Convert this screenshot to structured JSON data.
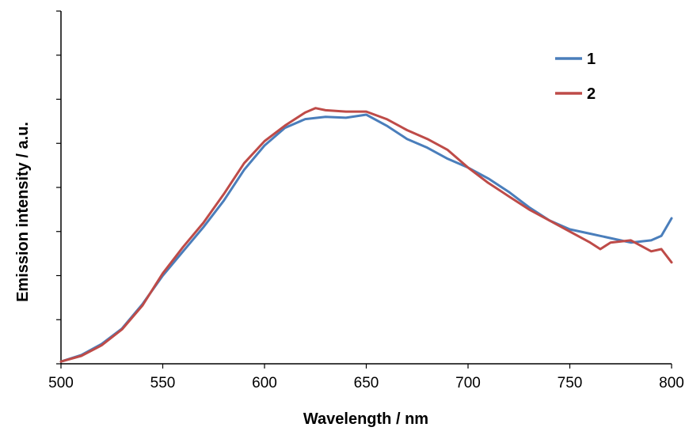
{
  "chart_data": {
    "type": "line",
    "title": "",
    "xlabel": "Wavelength / nm",
    "ylabel": "Emission intensity / a.u.",
    "xlim": [
      500,
      800
    ],
    "ylim": [
      0,
      8
    ],
    "x_ticks": [
      "500",
      "550",
      "600",
      "650",
      "700",
      "750",
      "800"
    ],
    "y_tick_labels_shown": false,
    "grid": false,
    "legend_position": "top-right",
    "series": [
      {
        "name": "1",
        "color": "#4A7EBB",
        "points": [
          [
            500,
            0.05
          ],
          [
            510,
            0.2
          ],
          [
            520,
            0.45
          ],
          [
            530,
            0.8
          ],
          [
            540,
            1.35
          ],
          [
            550,
            2.0
          ],
          [
            560,
            2.55
          ],
          [
            570,
            3.1
          ],
          [
            580,
            3.7
          ],
          [
            590,
            4.4
          ],
          [
            600,
            4.95
          ],
          [
            610,
            5.35
          ],
          [
            620,
            5.55
          ],
          [
            630,
            5.6
          ],
          [
            640,
            5.58
          ],
          [
            650,
            5.65
          ],
          [
            660,
            5.4
          ],
          [
            670,
            5.1
          ],
          [
            680,
            4.9
          ],
          [
            690,
            4.65
          ],
          [
            700,
            4.45
          ],
          [
            710,
            4.2
          ],
          [
            720,
            3.9
          ],
          [
            730,
            3.55
          ],
          [
            740,
            3.25
          ],
          [
            750,
            3.05
          ],
          [
            760,
            2.95
          ],
          [
            765,
            2.9
          ],
          [
            770,
            2.85
          ],
          [
            780,
            2.75
          ],
          [
            790,
            2.8
          ],
          [
            795,
            2.9
          ],
          [
            800,
            3.3
          ]
        ]
      },
      {
        "name": "2",
        "color": "#BE4B48",
        "points": [
          [
            500,
            0.05
          ],
          [
            510,
            0.18
          ],
          [
            520,
            0.42
          ],
          [
            530,
            0.78
          ],
          [
            540,
            1.32
          ],
          [
            550,
            2.05
          ],
          [
            560,
            2.65
          ],
          [
            570,
            3.2
          ],
          [
            580,
            3.85
          ],
          [
            590,
            4.55
          ],
          [
            600,
            5.05
          ],
          [
            610,
            5.4
          ],
          [
            620,
            5.7
          ],
          [
            625,
            5.8
          ],
          [
            630,
            5.75
          ],
          [
            640,
            5.72
          ],
          [
            650,
            5.72
          ],
          [
            660,
            5.55
          ],
          [
            670,
            5.3
          ],
          [
            680,
            5.1
          ],
          [
            690,
            4.85
          ],
          [
            700,
            4.45
          ],
          [
            710,
            4.1
          ],
          [
            720,
            3.8
          ],
          [
            730,
            3.5
          ],
          [
            740,
            3.25
          ],
          [
            750,
            3.0
          ],
          [
            760,
            2.75
          ],
          [
            765,
            2.6
          ],
          [
            770,
            2.75
          ],
          [
            780,
            2.8
          ],
          [
            790,
            2.55
          ],
          [
            795,
            2.6
          ],
          [
            800,
            2.3
          ]
        ]
      }
    ]
  }
}
